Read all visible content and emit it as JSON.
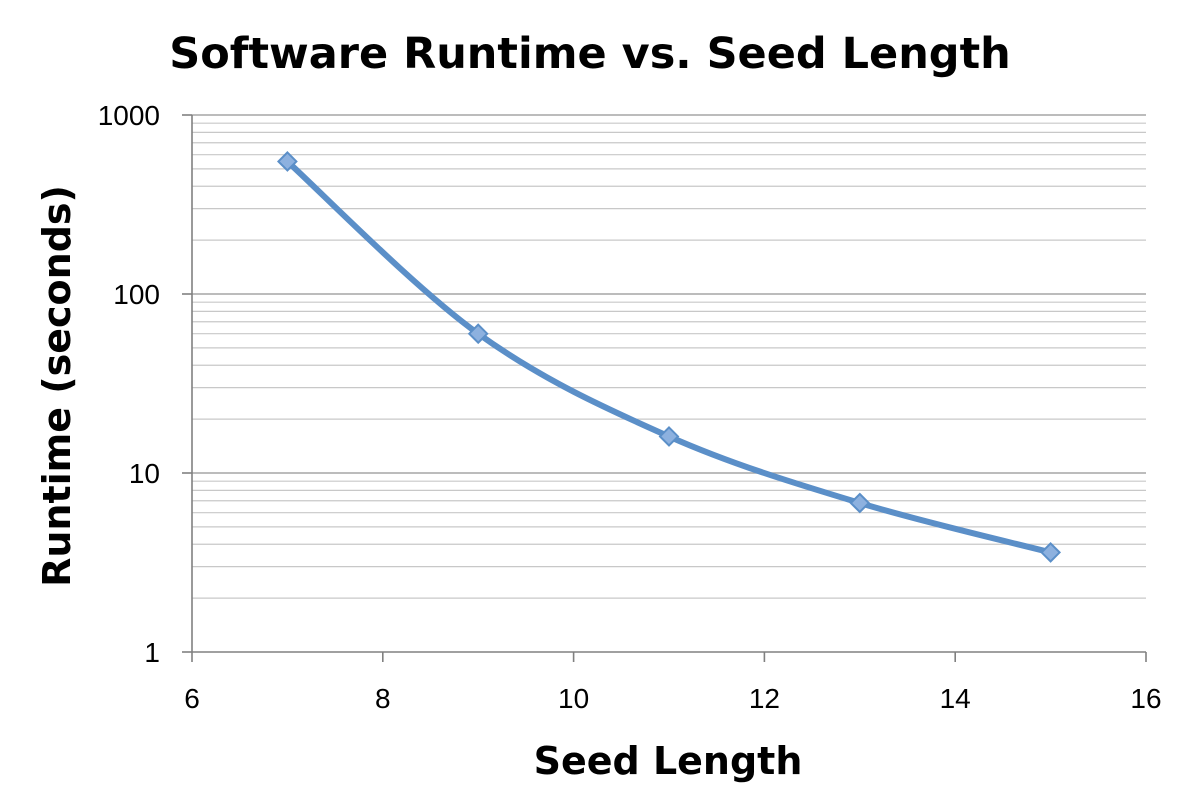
{
  "chart_data": {
    "type": "line",
    "title": "Software Runtime vs. Seed Length",
    "xlabel": "Seed Length",
    "ylabel": "Runtime (seconds)",
    "xlim": [
      6,
      16
    ],
    "ylim": [
      1,
      1000
    ],
    "yscale": "log",
    "grid": true,
    "legend": "none",
    "x_ticks": [
      "6",
      "8",
      "10",
      "12",
      "14",
      "16"
    ],
    "y_ticks": [
      "1",
      "10",
      "100",
      "1000"
    ],
    "series": [
      {
        "x": [
          7,
          9,
          11,
          13,
          15
        ],
        "y": [
          550,
          60,
          16,
          6.8,
          3.6
        ],
        "color": "#5b8fc8",
        "smooth": true
      }
    ]
  }
}
